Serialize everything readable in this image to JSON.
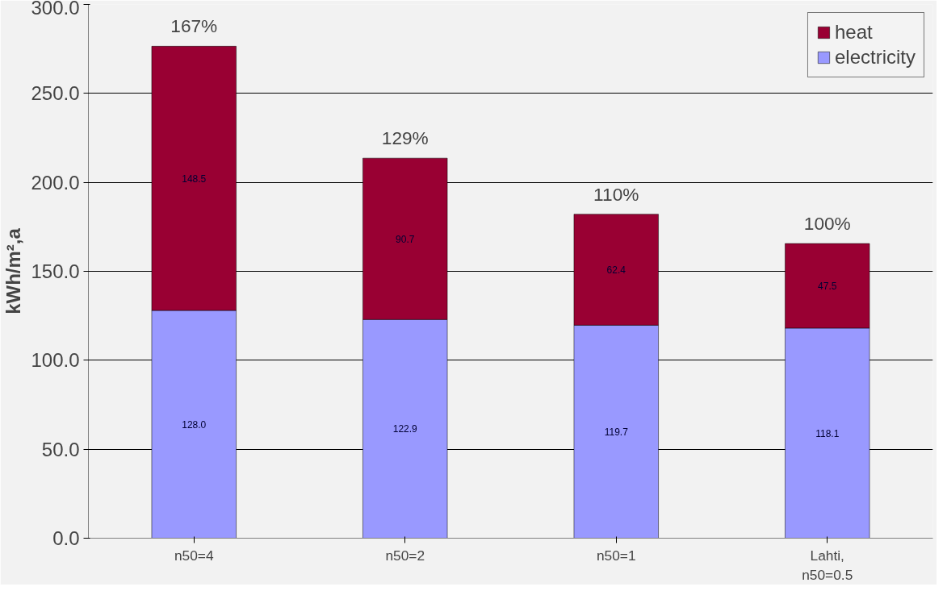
{
  "chart_data": {
    "type": "bar",
    "stacked": true,
    "ylabel": "kWh/m²,a",
    "categories": [
      "n50=4",
      "n50=2",
      "n50=1",
      "Lahti,\nn50=0.5"
    ],
    "series": [
      {
        "name": "electricity",
        "color": "#9999ff",
        "values": [
          128.0,
          122.9,
          119.7,
          118.1
        ],
        "value_labels": [
          "128.0",
          "122.9",
          "119.7",
          "118.1"
        ]
      },
      {
        "name": "heat",
        "color": "#990033",
        "values": [
          148.5,
          90.7,
          62.4,
          47.5
        ],
        "value_labels": [
          "148.5",
          "90.7",
          "62.4",
          "47.5"
        ]
      }
    ],
    "annotations": [
      {
        "text": "167%",
        "x": "n50=4",
        "y": 276.5
      },
      {
        "text": "129%",
        "x": "n50=2",
        "y": 213.6
      },
      {
        "text": "110%",
        "x": "n50=1",
        "y": 182.1
      },
      {
        "text": "100%",
        "y": 165.6
      }
    ],
    "ylim": [
      0,
      300
    ],
    "yticks": [
      {
        "value": 0,
        "label": "0.0"
      },
      {
        "value": 50,
        "label": "50.0"
      },
      {
        "value": 100,
        "label": "100.0"
      },
      {
        "value": 150,
        "label": "150.0"
      },
      {
        "value": 200,
        "label": "200.0"
      },
      {
        "value": 250,
        "label": "250.0"
      },
      {
        "value": 300,
        "label": "300.0"
      }
    ],
    "grid": "y",
    "legend": "top right"
  }
}
